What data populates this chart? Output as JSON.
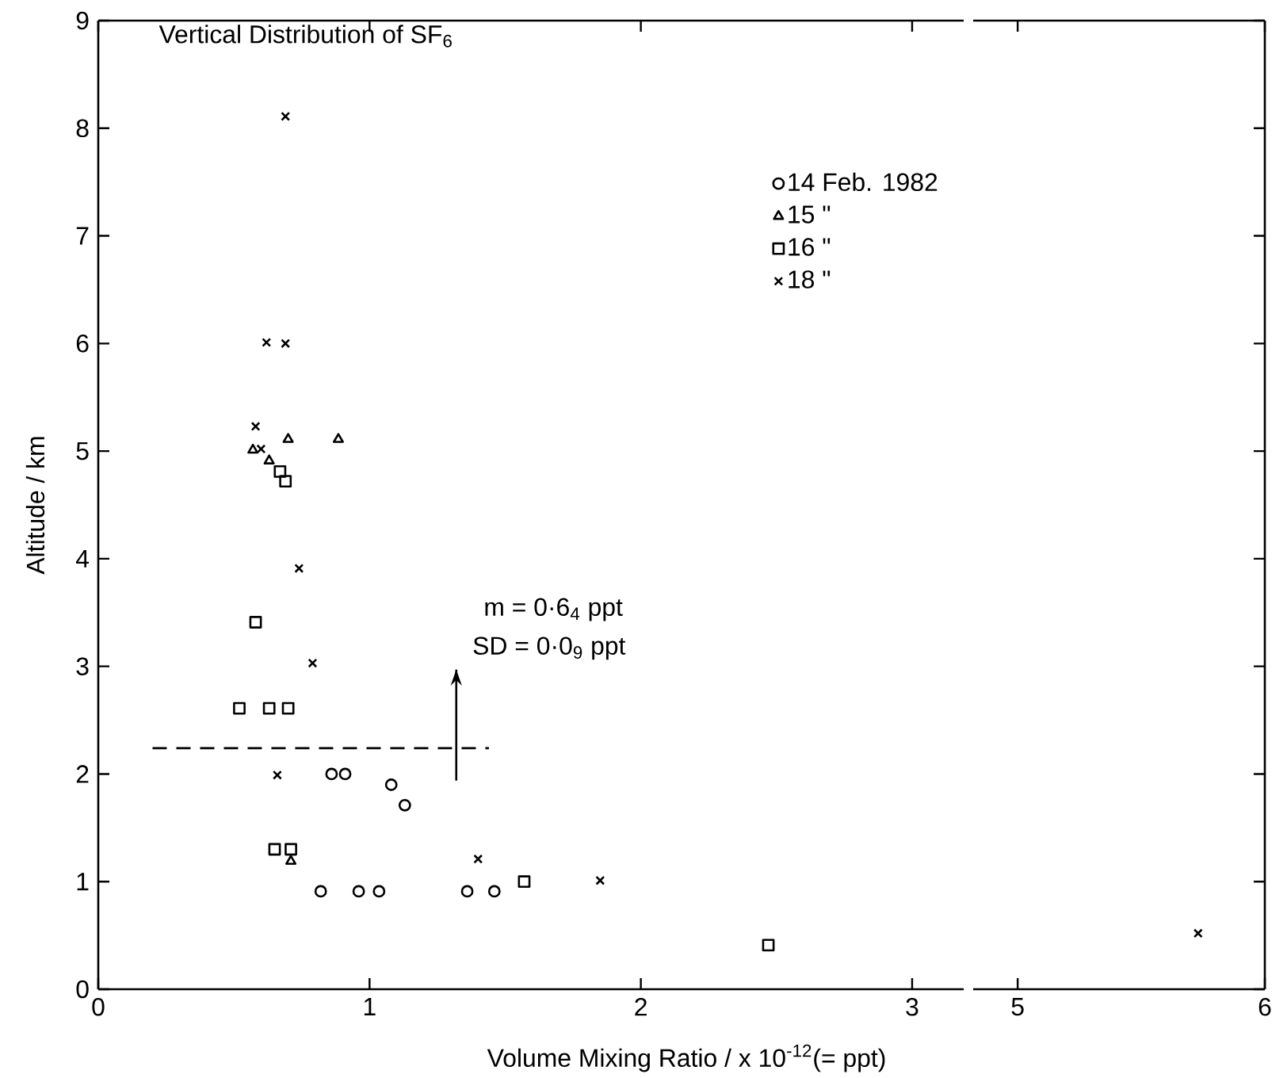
{
  "chart_data": [
    {
      "type": "scatter",
      "title": "Vertical Distribution of SF$_{6}$",
      "xlabel": "Volume  Mixing  Ratio / x 10$^{-12}$(= ppt)",
      "ylabel": "Altitude / km",
      "xlim": [
        0,
        3.19
      ],
      "xticks": [
        0,
        1,
        2,
        3
      ],
      "ylim": [
        0,
        9
      ],
      "yticks": [
        0,
        1,
        2,
        3,
        4,
        5,
        6,
        7,
        8,
        9
      ],
      "legend": "top right",
      "annotations": [
        "m = 0·6$_{4}$ ppt",
        "SD = 0·0$_{9}$ ppt"
      ],
      "series": [
        {
          "name": "14 Feb. 1982",
          "color": "#000000",
          "marker": "circle",
          "x": [
            0.86,
            0.91,
            1.08,
            1.13,
            0.82,
            0.96,
            1.035,
            1.36,
            1.46
          ],
          "values": [
            2.0,
            2.0,
            1.9,
            1.71,
            0.91,
            0.91,
            0.91,
            0.91,
            0.91
          ]
        },
        {
          "name": "15 \"",
          "color": "#000000",
          "marker": "triangle",
          "x": [
            0.57,
            0.63,
            0.7,
            0.885,
            0.71
          ],
          "values": [
            5.01,
            4.91,
            5.11,
            5.11,
            1.19
          ]
        },
        {
          "name": "16 \"",
          "color": "#000000",
          "marker": "square",
          "x": [
            0.67,
            0.69,
            0.58,
            0.52,
            0.63,
            0.7,
            0.65,
            0.71,
            1.57,
            2.47
          ],
          "values": [
            4.81,
            4.72,
            3.41,
            2.61,
            2.61,
            2.61,
            1.3,
            1.3,
            1.0,
            0.41
          ]
        },
        {
          "name": "18 \"",
          "color": "#000000",
          "marker": "cross",
          "x": [
            0.69,
            0.62,
            0.69,
            0.58,
            0.6,
            0.74,
            0.79,
            0.66,
            1.4,
            1.85
          ],
          "values": [
            8.11,
            6.01,
            6.0,
            5.23,
            5.02,
            3.91,
            3.03,
            1.99,
            1.21,
            1.01
          ]
        },
        {
          "type": "line",
          "color": "#000000",
          "marker": "none",
          "line_style": "dashed",
          "x": [
            0.2,
            1.44
          ],
          "values": [
            2.24,
            2.24
          ]
        }
      ]
    },
    {
      "type": "scatter",
      "xlim": [
        4.82,
        6
      ],
      "xticks": [
        5,
        6
      ],
      "ylim": [
        0,
        9
      ],
      "yticks": [
        0,
        1,
        2,
        3,
        4,
        5,
        6,
        7,
        8,
        9
      ],
      "tick_labels": "x",
      "series": [
        {
          "color": "#000000",
          "marker": "cross",
          "x": [
            5.73
          ],
          "values": [
            0.52
          ]
        }
      ]
    }
  ]
}
